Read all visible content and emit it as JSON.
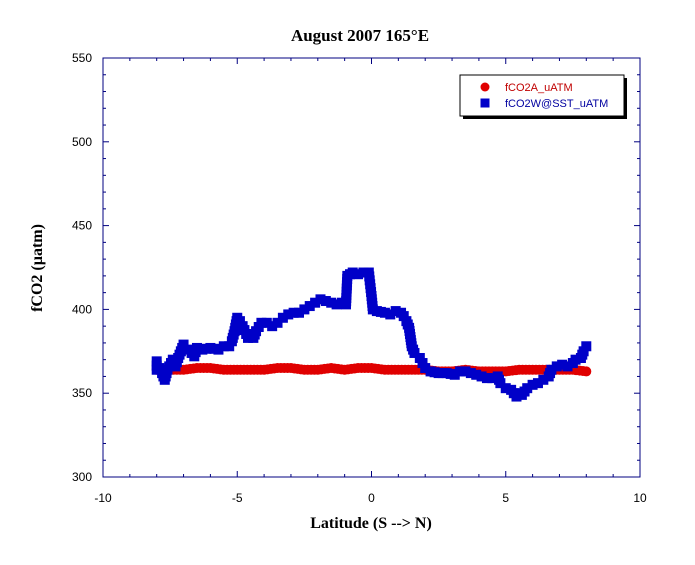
{
  "chart_data": {
    "type": "scatter",
    "title": "August 2007 165°E",
    "xlabel": "Latitude (S --> N)",
    "ylabel": "fCO2 (µatm)",
    "xlim": [
      -10,
      10
    ],
    "ylim": [
      300,
      550
    ],
    "xticks": [
      "-10",
      "-5",
      "0",
      "5",
      "10"
    ],
    "yticks": [
      "300",
      "350",
      "400",
      "450",
      "500",
      "550"
    ],
    "grid": false,
    "legend_position": "top-right",
    "series": [
      {
        "name": "fCO2A_uATM",
        "marker": "circle",
        "color": "#e00000",
        "points": [
          [
            -8.0,
            364
          ],
          [
            -7.5,
            364
          ],
          [
            -7.0,
            364
          ],
          [
            -6.5,
            365
          ],
          [
            -6.0,
            365
          ],
          [
            -5.5,
            364
          ],
          [
            -5.0,
            364
          ],
          [
            -4.5,
            364
          ],
          [
            -4.0,
            364
          ],
          [
            -3.5,
            365
          ],
          [
            -3.0,
            365
          ],
          [
            -2.5,
            364
          ],
          [
            -2.0,
            364
          ],
          [
            -1.5,
            365
          ],
          [
            -1.0,
            364
          ],
          [
            -0.5,
            365
          ],
          [
            0.0,
            365
          ],
          [
            0.5,
            364
          ],
          [
            1.0,
            364
          ],
          [
            1.5,
            364
          ],
          [
            2.0,
            364
          ],
          [
            2.5,
            363
          ],
          [
            3.0,
            363
          ],
          [
            3.5,
            364
          ],
          [
            4.0,
            363
          ],
          [
            4.5,
            363
          ],
          [
            5.0,
            363
          ],
          [
            5.5,
            364
          ],
          [
            6.0,
            364
          ],
          [
            6.5,
            364
          ],
          [
            7.0,
            364
          ],
          [
            7.5,
            364
          ],
          [
            8.0,
            363
          ]
        ]
      },
      {
        "name": "fCO2W@SST_uATM",
        "marker": "square",
        "color": "#0000c8",
        "points": [
          [
            -8.0,
            369
          ],
          [
            -8.0,
            364
          ],
          [
            -7.9,
            365
          ],
          [
            -7.8,
            362
          ],
          [
            -7.7,
            358
          ],
          [
            -7.6,
            364
          ],
          [
            -7.4,
            370
          ],
          [
            -7.3,
            366
          ],
          [
            -7.2,
            371
          ],
          [
            -7.1,
            375
          ],
          [
            -7.0,
            379
          ],
          [
            -6.8,
            376
          ],
          [
            -6.6,
            372
          ],
          [
            -6.5,
            377
          ],
          [
            -6.3,
            376
          ],
          [
            -6.0,
            377
          ],
          [
            -5.7,
            376
          ],
          [
            -5.5,
            378
          ],
          [
            -5.3,
            378
          ],
          [
            -5.2,
            381
          ],
          [
            -5.1,
            387
          ],
          [
            -5.0,
            395
          ],
          [
            -4.9,
            393
          ],
          [
            -4.8,
            390
          ],
          [
            -4.6,
            383
          ],
          [
            -4.4,
            383
          ],
          [
            -4.3,
            387
          ],
          [
            -4.1,
            392
          ],
          [
            -3.9,
            392
          ],
          [
            -3.7,
            390
          ],
          [
            -3.5,
            392
          ],
          [
            -3.3,
            395
          ],
          [
            -3.1,
            397
          ],
          [
            -2.9,
            398
          ],
          [
            -2.7,
            398
          ],
          [
            -2.5,
            400
          ],
          [
            -2.3,
            402
          ],
          [
            -2.1,
            404
          ],
          [
            -1.9,
            406
          ],
          [
            -1.7,
            405
          ],
          [
            -1.5,
            404
          ],
          [
            -1.3,
            403
          ],
          [
            -1.1,
            404
          ],
          [
            -0.95,
            403
          ],
          [
            -0.9,
            420
          ],
          [
            -0.8,
            421
          ],
          [
            -0.7,
            422
          ],
          [
            -0.5,
            421
          ],
          [
            -0.3,
            422
          ],
          [
            -0.1,
            422
          ],
          [
            -0.05,
            415
          ],
          [
            0.0,
            408
          ],
          [
            0.05,
            400
          ],
          [
            0.2,
            399
          ],
          [
            0.5,
            398
          ],
          [
            0.7,
            397
          ],
          [
            0.9,
            399
          ],
          [
            1.1,
            398
          ],
          [
            1.2,
            396
          ],
          [
            1.3,
            393
          ],
          [
            1.4,
            389
          ],
          [
            1.5,
            378
          ],
          [
            1.6,
            374
          ],
          [
            1.8,
            371
          ],
          [
            1.9,
            368
          ],
          [
            2.0,
            365
          ],
          [
            2.2,
            363
          ],
          [
            2.5,
            362
          ],
          [
            2.8,
            362
          ],
          [
            3.1,
            361
          ],
          [
            3.3,
            363
          ],
          [
            3.5,
            363
          ],
          [
            3.7,
            362
          ],
          [
            3.9,
            361
          ],
          [
            4.1,
            360
          ],
          [
            4.3,
            359
          ],
          [
            4.5,
            359
          ],
          [
            4.7,
            360
          ],
          [
            4.8,
            356
          ],
          [
            5.0,
            353
          ],
          [
            5.2,
            352
          ],
          [
            5.3,
            350
          ],
          [
            5.4,
            348
          ],
          [
            5.5,
            350
          ],
          [
            5.6,
            349
          ],
          [
            5.8,
            353
          ],
          [
            6.0,
            355
          ],
          [
            6.2,
            356
          ],
          [
            6.4,
            358
          ],
          [
            6.6,
            360
          ],
          [
            6.7,
            364
          ],
          [
            6.9,
            366
          ],
          [
            7.1,
            367
          ],
          [
            7.3,
            366
          ],
          [
            7.5,
            368
          ],
          [
            7.6,
            370
          ],
          [
            7.8,
            371
          ],
          [
            7.9,
            375
          ],
          [
            8.0,
            378
          ]
        ]
      }
    ]
  }
}
